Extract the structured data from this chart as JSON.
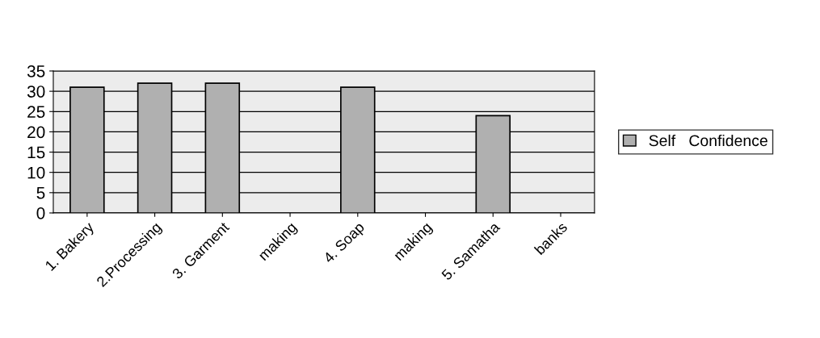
{
  "chart_data": {
    "type": "bar",
    "categories": [
      "1. Bakery",
      "2.Processing",
      "3. Garment",
      "making",
      "4. Soap",
      "making",
      "5. Samatha",
      "banks"
    ],
    "series": [
      {
        "name": "Self   Confidence",
        "color": "#b0b0b0",
        "values": [
          31,
          32,
          32,
          null,
          31,
          null,
          24,
          null
        ]
      }
    ],
    "ylim": [
      0,
      35
    ],
    "yticks": [
      0,
      5,
      10,
      15,
      20,
      25,
      30,
      35
    ],
    "grid": "y",
    "legend": "right"
  }
}
